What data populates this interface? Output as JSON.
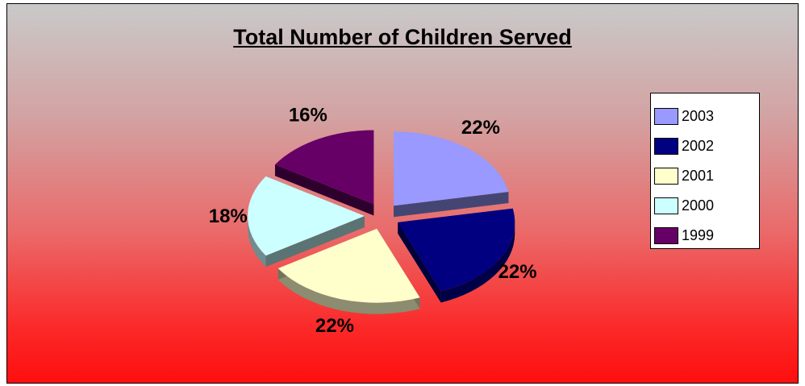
{
  "chart_data": {
    "type": "pie",
    "title": "Total Number of Children Served",
    "categories": [
      "2003",
      "2002",
      "2001",
      "2000",
      "1999"
    ],
    "values": [
      22,
      22,
      22,
      18,
      16
    ],
    "labels": [
      "22%",
      "22%",
      "22%",
      "18%",
      "16%"
    ],
    "colors": [
      "#9999ff",
      "#000080",
      "#ffffcc",
      "#ccffff",
      "#660066"
    ],
    "exploded": true,
    "three_d": true,
    "legend_position": "right"
  }
}
